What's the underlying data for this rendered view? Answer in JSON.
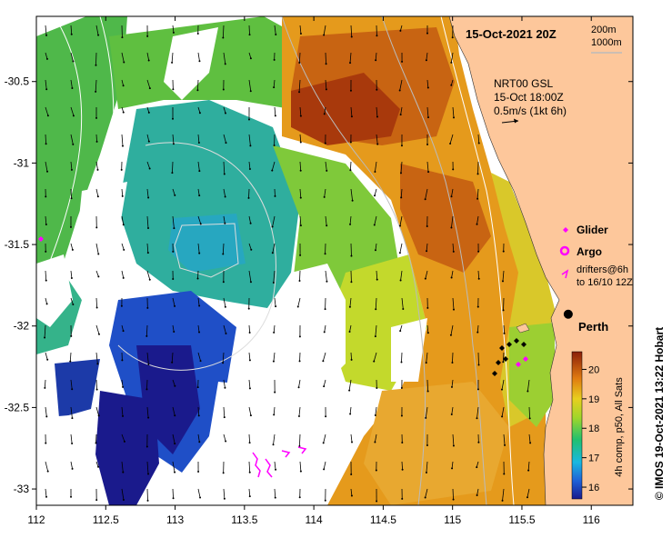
{
  "title": "15-Oct-2021 20Z",
  "depth_contours": [
    "200m",
    "1000m"
  ],
  "current_info": {
    "line1": "NRT00 GSL",
    "line2": "15-Oct 18:00Z",
    "line3": "0.5m/s (1kt 6h)"
  },
  "legend": {
    "glider": "Glider",
    "argo": "Argo",
    "drifters_line1": "drifters@6h",
    "drifters_line2": "to 16/10 12Z"
  },
  "place": "Perth",
  "colorbar": {
    "label": "4h comp, p50, All Sats",
    "ticks": [
      "16",
      "17",
      "18",
      "19",
      "20"
    ],
    "range": [
      15.6,
      20.6
    ]
  },
  "credit": "© IMOS 19-Oct-2021 13:22 Hobart",
  "x_axis": {
    "ticks": [
      "112",
      "112.5",
      "113",
      "113.5",
      "114",
      "114.5",
      "115",
      "115.5",
      "116"
    ],
    "range": [
      112,
      116.3
    ]
  },
  "y_axis": {
    "ticks": [
      "-30.5",
      "-31",
      "-31.5",
      "-32",
      "-32.5",
      "-33"
    ],
    "range": [
      -33.1,
      -30.1
    ]
  },
  "perth": {
    "lon": 115.86,
    "lat": -31.95
  },
  "colors": {
    "land": "#fdc79b",
    "ocean_nodata": "#ffffff",
    "glider": "#ff00ff",
    "argo": "#ff00ff",
    "drifter": "#ff00ff"
  }
}
